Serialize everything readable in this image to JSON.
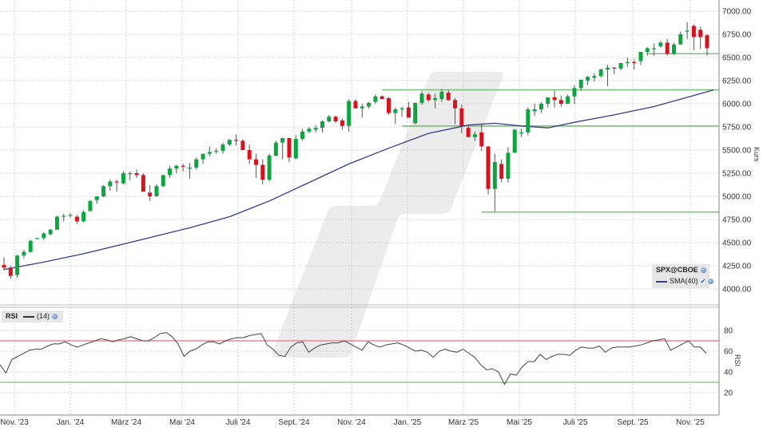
{
  "chart_data": [
    {
      "type": "candlestick",
      "title": "SPX@CBOE",
      "interval": "weekly",
      "ylabel": "Kurs",
      "ylim": [
        3850,
        7050
      ],
      "y_ticks": [
        "4000.00",
        "4250.00",
        "4500.00",
        "4750.00",
        "5000.00",
        "5250.00",
        "5500.00",
        "5750.00",
        "6000.00",
        "6250.00",
        "6500.00",
        "6750.00",
        "7000.00"
      ],
      "y_tick_values": [
        4000,
        4250,
        4500,
        4750,
        5000,
        5250,
        5500,
        5750,
        6000,
        6250,
        6500,
        6750,
        7000
      ],
      "grid": true,
      "legend": {
        "position": "bottom-right",
        "symbol": "SPX@CBOE",
        "entries": [
          "SMA(40)"
        ]
      },
      "x_ticks": [
        "Nov. '23",
        "Jan. '24",
        "März '24",
        "Mai '24",
        "Juli '24",
        "Sept. '24",
        "Nov. '24",
        "Jan. '25",
        "März '25",
        "Mai '25",
        "Juli '25",
        "Sept. '25",
        "Nov. '25"
      ],
      "candles_ohlc": [
        [
          4260,
          4340,
          4200,
          4230
        ],
        [
          4230,
          4250,
          4110,
          4140
        ],
        [
          4150,
          4370,
          4120,
          4360
        ],
        [
          4360,
          4420,
          4330,
          4400
        ],
        [
          4400,
          4530,
          4390,
          4520
        ],
        [
          4540,
          4550,
          4540,
          4550
        ],
        [
          4550,
          4610,
          4530,
          4600
        ],
        [
          4590,
          4650,
          4580,
          4640
        ],
        [
          4640,
          4790,
          4640,
          4780
        ],
        [
          4780,
          4810,
          4730,
          4790
        ],
        [
          4790,
          4820,
          4770,
          4800
        ],
        [
          4780,
          4800,
          4700,
          4730
        ],
        [
          4730,
          4850,
          4720,
          4830
        ],
        [
          4840,
          4960,
          4840,
          4950
        ],
        [
          4960,
          5000,
          4920,
          5000
        ],
        [
          5000,
          5120,
          4990,
          5110
        ],
        [
          5110,
          5180,
          5060,
          5160
        ],
        [
          5160,
          5180,
          5050,
          5150
        ],
        [
          5140,
          5270,
          5130,
          5250
        ],
        [
          5240,
          5270,
          5170,
          5250
        ],
        [
          5250,
          5290,
          5200,
          5230
        ],
        [
          5230,
          5250,
          5100,
          5050
        ],
        [
          5040,
          5120,
          4950,
          5000
        ],
        [
          5000,
          5130,
          5000,
          5110
        ],
        [
          5110,
          5230,
          5100,
          5230
        ],
        [
          5230,
          5330,
          5200,
          5300
        ],
        [
          5300,
          5340,
          5250,
          5330
        ],
        [
          5330,
          5350,
          5270,
          5320
        ],
        [
          5310,
          5360,
          5190,
          5310
        ],
        [
          5310,
          5420,
          5290,
          5400
        ],
        [
          5400,
          5460,
          5350,
          5460
        ],
        [
          5460,
          5540,
          5430,
          5480
        ],
        [
          5480,
          5520,
          5460,
          5490
        ],
        [
          5490,
          5580,
          5460,
          5560
        ],
        [
          5560,
          5620,
          5540,
          5610
        ],
        [
          5610,
          5670,
          5550,
          5600
        ],
        [
          5600,
          5620,
          5500,
          5500
        ],
        [
          5500,
          5560,
          5350,
          5400
        ],
        [
          5400,
          5460,
          5200,
          5340
        ],
        [
          5340,
          5400,
          5130,
          5180
        ],
        [
          5180,
          5460,
          5160,
          5440
        ],
        [
          5440,
          5600,
          5430,
          5580
        ],
        [
          5580,
          5580,
          5400,
          5630
        ],
        [
          5630,
          5630,
          5370,
          5420
        ],
        [
          5410,
          5660,
          5400,
          5620
        ],
        [
          5620,
          5730,
          5600,
          5700
        ],
        [
          5700,
          5750,
          5680,
          5730
        ],
        [
          5720,
          5770,
          5690,
          5740
        ],
        [
          5740,
          5820,
          5690,
          5810
        ],
        [
          5810,
          5880,
          5800,
          5860
        ],
        [
          5860,
          5870,
          5790,
          5810
        ],
        [
          5820,
          5840,
          5720,
          5760
        ],
        [
          5760,
          6050,
          5700,
          6030
        ],
        [
          6030,
          6050,
          5960,
          5950
        ],
        [
          5950,
          6000,
          5850,
          5970
        ],
        [
          5970,
          6020,
          5950,
          6010
        ],
        [
          6020,
          6100,
          6000,
          6080
        ],
        [
          6080,
          6090,
          6050,
          6050
        ],
        [
          6060,
          6070,
          5880,
          5900
        ],
        [
          5900,
          5960,
          5780,
          5940
        ],
        [
          5940,
          5970,
          5860,
          5950
        ],
        [
          5960,
          6020,
          5900,
          5850
        ],
        [
          5790,
          6010,
          5780,
          6010
        ],
        [
          6010,
          6140,
          5990,
          6110
        ],
        [
          6100,
          6120,
          6020,
          6040
        ],
        [
          6040,
          6110,
          5950,
          6060
        ],
        [
          6050,
          6160,
          6020,
          6130
        ],
        [
          6120,
          6150,
          6030,
          6040
        ],
        [
          6040,
          6060,
          5780,
          5950
        ],
        [
          5950,
          5990,
          5680,
          5760
        ],
        [
          5740,
          5760,
          5650,
          5640
        ],
        [
          5640,
          5700,
          5600,
          5670
        ],
        [
          5690,
          5790,
          5490,
          5540
        ],
        [
          5540,
          5540,
          5020,
          5080
        ],
        [
          5080,
          5460,
          4840,
          5370
        ],
        [
          5350,
          5400,
          5150,
          5190
        ],
        [
          5190,
          5530,
          5150,
          5470
        ],
        [
          5470,
          5730,
          5490,
          5720
        ],
        [
          5680,
          5730,
          5640,
          5690
        ],
        [
          5690,
          5960,
          5660,
          5940
        ],
        [
          5920,
          6000,
          5870,
          5940
        ],
        [
          5940,
          6020,
          5900,
          6000
        ],
        [
          6000,
          6060,
          5960,
          6070
        ],
        [
          6070,
          6140,
          5960,
          6040
        ],
        [
          6040,
          6090,
          5970,
          6000
        ],
        [
          6000,
          6100,
          6020,
          6080
        ],
        [
          6080,
          6200,
          6000,
          6170
        ],
        [
          6170,
          6260,
          6140,
          6260
        ],
        [
          6250,
          6300,
          6200,
          6290
        ],
        [
          6280,
          6330,
          6240,
          6300
        ],
        [
          6300,
          6380,
          6280,
          6370
        ],
        [
          6370,
          6420,
          6190,
          6390
        ],
        [
          6390,
          6400,
          6320,
          6380
        ],
        [
          6380,
          6440,
          6360,
          6440
        ],
        [
          6440,
          6500,
          6400,
          6450
        ],
        [
          6450,
          6480,
          6370,
          6440
        ],
        [
          6460,
          6560,
          6420,
          6560
        ],
        [
          6560,
          6610,
          6520,
          6600
        ],
        [
          6600,
          6650,
          6520,
          6600
        ],
        [
          6620,
          6680,
          6600,
          6660
        ],
        [
          6660,
          6700,
          6520,
          6540
        ],
        [
          6540,
          6660,
          6530,
          6640
        ],
        [
          6640,
          6780,
          6640,
          6750
        ],
        [
          6780,
          6880,
          6700,
          6790
        ],
        [
          6840,
          6860,
          6580,
          6720
        ],
        [
          6800,
          6830,
          6590,
          6720
        ],
        [
          6740,
          6750,
          6520,
          6600
        ]
      ],
      "sma40": {
        "name": "SMA(40)",
        "color": "#3b3a8c",
        "points": [
          [
            0,
            4210
          ],
          [
            6,
            4290
          ],
          [
            12,
            4380
          ],
          [
            20,
            4520
          ],
          [
            28,
            4660
          ],
          [
            34,
            4780
          ],
          [
            40,
            4950
          ],
          [
            46,
            5150
          ],
          [
            52,
            5350
          ],
          [
            58,
            5520
          ],
          [
            64,
            5680
          ],
          [
            70,
            5770
          ],
          [
            74,
            5790
          ],
          [
            78,
            5760
          ],
          [
            82,
            5740
          ],
          [
            86,
            5800
          ],
          [
            92,
            5880
          ],
          [
            98,
            5970
          ],
          [
            104,
            6090
          ],
          [
            107,
            6150
          ]
        ]
      },
      "horizontal_lines": [
        {
          "value": 6540,
          "from_index": 97,
          "to_index": 107,
          "color": "#7cc47c"
        },
        {
          "value": 6150,
          "from_index": 57,
          "to_index": 107,
          "color": "#7cc47c"
        },
        {
          "value": 5760,
          "from_index": 60,
          "to_index": 107,
          "color": "#7cc47c"
        },
        {
          "value": 4830,
          "from_index": 72,
          "to_index": 107,
          "color": "#7cc47c"
        }
      ]
    },
    {
      "type": "line",
      "title": "RSI",
      "ylabel": "RSI",
      "series": [
        {
          "name": "(14)",
          "color": "#444444",
          "values": [
            47,
            39,
            52,
            55,
            58,
            61,
            62,
            62,
            65,
            67,
            67,
            69,
            66,
            64,
            66,
            68,
            70,
            72,
            71,
            69,
            71,
            72,
            74,
            72,
            70,
            70,
            73,
            77,
            78,
            74,
            67,
            55,
            60,
            62,
            66,
            69,
            69,
            67,
            70,
            72,
            73,
            73,
            75,
            76,
            77,
            66,
            62,
            56,
            55,
            64,
            68,
            69,
            59,
            63,
            66,
            67,
            68,
            68,
            70,
            67,
            64,
            61,
            69,
            66,
            64,
            66,
            67,
            68,
            66,
            63,
            60,
            61,
            59,
            54,
            60,
            62,
            60,
            59,
            62,
            58,
            54,
            47,
            42,
            43,
            40,
            28,
            38,
            37,
            45,
            50,
            50,
            57,
            52,
            55,
            57,
            57,
            56,
            61,
            64,
            63,
            63,
            65,
            59,
            63,
            64,
            64,
            64,
            65,
            66,
            68,
            70,
            71,
            72,
            61,
            64,
            67,
            70,
            64,
            64,
            58
          ]
        }
      ],
      "ylim": [
        10,
        90
      ],
      "y_ticks": [
        "20",
        "40",
        "60",
        "80"
      ],
      "y_tick_values": [
        20,
        40,
        60,
        80
      ],
      "overbought": 70,
      "oversold": 30,
      "overbought_color": "#e8717f",
      "oversold_color": "#7cc47c",
      "grid": true
    }
  ],
  "main_legend": {
    "symbol": "SPX@CBOE",
    "indicator": "SMA(40)"
  },
  "rsi_legend": {
    "title": "RSI",
    "param": "(14)"
  },
  "axis": {
    "price_label": "Kurs",
    "rsi_label": "RSI"
  },
  "colors": {
    "up": "#0ea540",
    "down": "#d9131e",
    "wick": "#555555",
    "grid": "#c8c8c8",
    "axis": "#888888",
    "watermark": "#ececec"
  }
}
